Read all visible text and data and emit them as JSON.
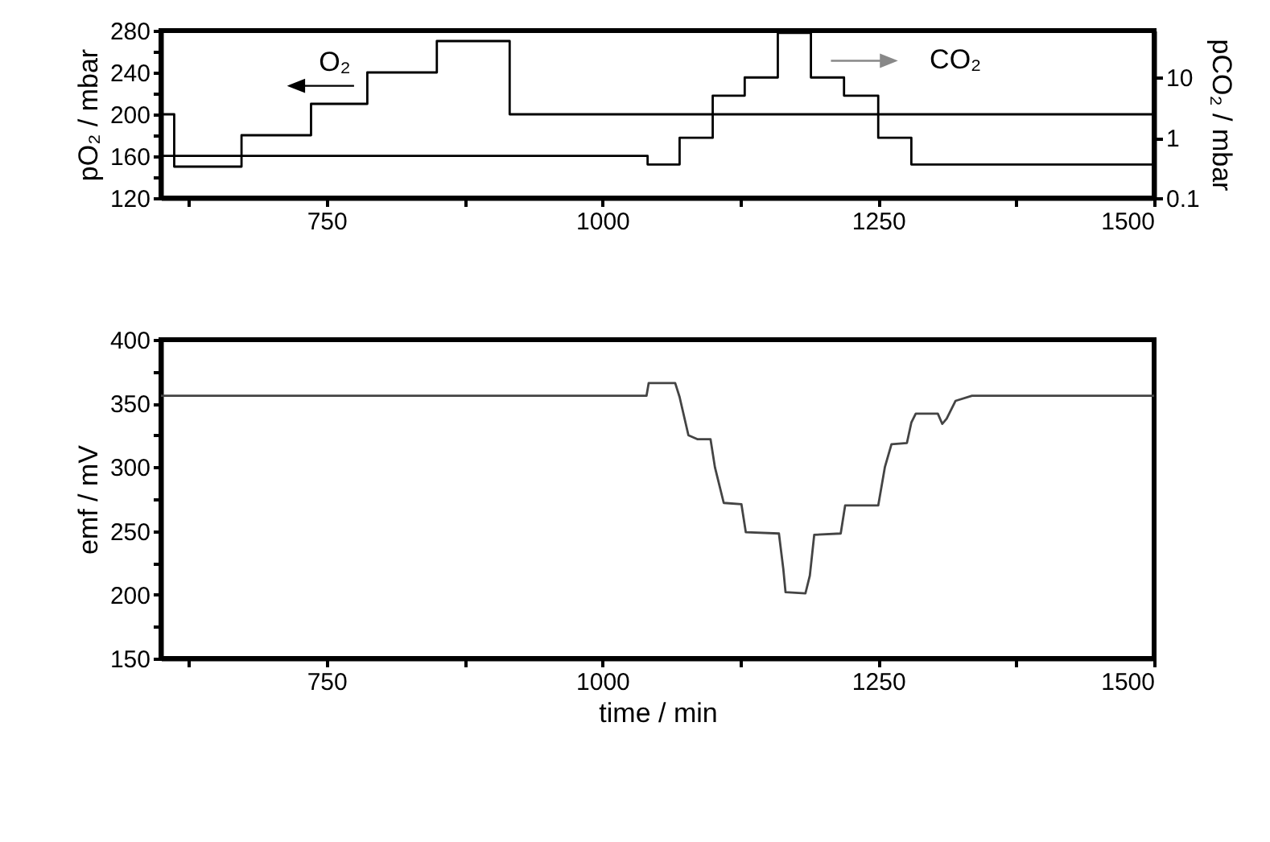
{
  "chart_data": [
    {
      "type": "step",
      "ylabel": "pO₂ / mbar",
      "y2label": "pCO₂ / mbar",
      "xlim": [
        600,
        1500
      ],
      "xticks": [
        {
          "value": 625,
          "label": null
        },
        750,
        {
          "value": 875,
          "label": null
        },
        1000,
        {
          "value": 1125,
          "label": null
        },
        1250,
        {
          "value": 1375,
          "label": null
        },
        1500
      ],
      "ylim": [
        120,
        280
      ],
      "yticks": [
        120,
        {
          "value": 140,
          "label": null
        },
        160,
        {
          "value": 180,
          "label": null
        },
        200,
        {
          "value": 220,
          "label": null
        },
        240,
        {
          "value": 260,
          "label": null
        },
        280
      ],
      "y2lim": [
        0.1,
        60
      ],
      "y2ticks": [
        0.1,
        1,
        10
      ],
      "log": "y2",
      "series": [
        {
          "color": "#000000",
          "x": [
            600,
            612,
            673,
            736,
            787,
            850,
            916,
            1500
          ],
          "values": [
            200,
            150,
            180,
            210,
            240,
            270,
            200,
            200
          ]
        },
        {
          "color": "#000000",
          "axis": "y2",
          "x": [
            600,
            1041,
            1070,
            1100,
            1129,
            1159,
            1189,
            1219,
            1250,
            1280,
            1500
          ],
          "values": [
            0.5,
            0.36,
            1,
            5,
            10,
            55,
            10,
            5,
            1,
            0.36,
            0.36
          ]
        }
      ],
      "annotations": [
        "O₂",
        "CO₂"
      ]
    },
    {
      "type": "line",
      "xlabel": "time / min",
      "ylabel": "emf / mV",
      "xlim": [
        600,
        1500
      ],
      "xticks": [
        {
          "value": 625,
          "label": null
        },
        750,
        {
          "value": 875,
          "label": null
        },
        1000,
        {
          "value": 1125,
          "label": null
        },
        1250,
        {
          "value": 1375,
          "label": null
        },
        1500
      ],
      "ylim": [
        150,
        400
      ],
      "yticks": [
        150,
        {
          "value": 175,
          "label": null
        },
        200,
        {
          "value": 225,
          "label": null
        },
        250,
        {
          "value": 275,
          "label": null
        },
        300,
        {
          "value": 325,
          "label": null
        },
        350,
        {
          "value": 375,
          "label": null
        },
        400
      ],
      "series": [
        {
          "color": "#444444",
          "x": [
            600,
            1040,
            1042,
            1066,
            1070,
            1078,
            1086,
            1098,
            1102,
            1110,
            1126,
            1130,
            1160,
            1164,
            1166,
            1184,
            1188,
            1192,
            1216,
            1220,
            1250,
            1256,
            1262,
            1276,
            1280,
            1284,
            1304,
            1308,
            1312,
            1320,
            1335,
            1350,
            1500
          ],
          "values": [
            356,
            356,
            366,
            366,
            355,
            325,
            322,
            322,
            300,
            272,
            271,
            249,
            248,
            220,
            202,
            201,
            215,
            247,
            248,
            270,
            270,
            300,
            318,
            319,
            335,
            342,
            342,
            334,
            338,
            352,
            356,
            356,
            356
          ]
        }
      ]
    }
  ]
}
